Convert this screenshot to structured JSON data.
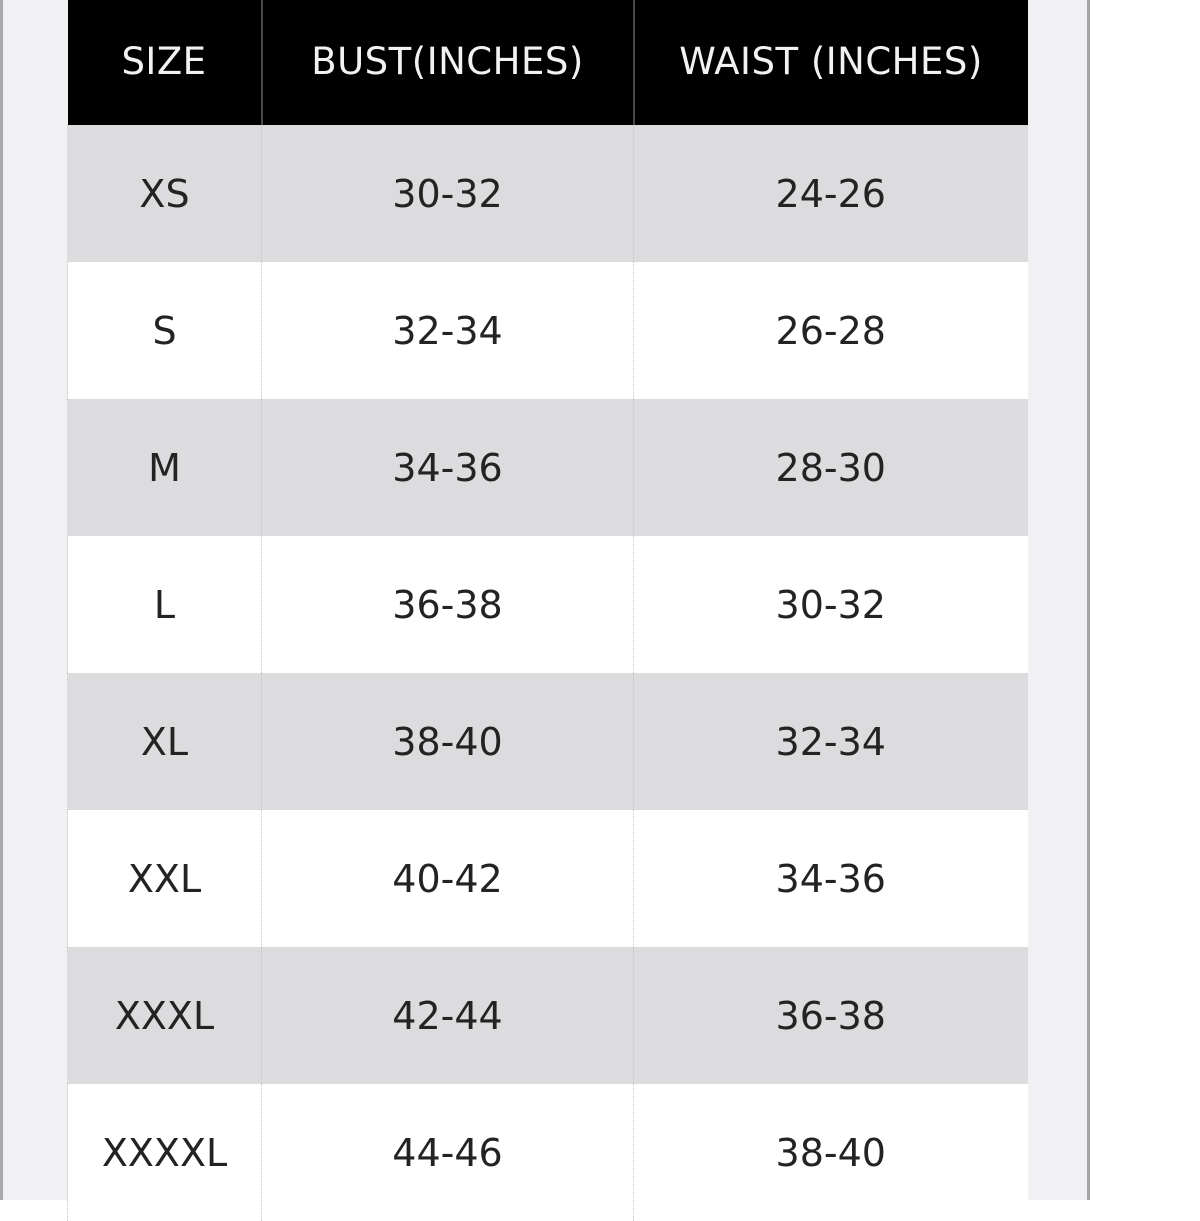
{
  "table": {
    "headers": [
      "SIZE",
      "BUST(INCHES)",
      "WAIST (INCHES)"
    ],
    "rows": [
      [
        "XS",
        "30-32",
        "24-26"
      ],
      [
        "S",
        "32-34",
        "26-28"
      ],
      [
        "M",
        "34-36",
        "28-30"
      ],
      [
        "L",
        "36-38",
        "30-32"
      ],
      [
        "XL",
        "38-40",
        "32-34"
      ],
      [
        "XXL",
        "40-42",
        "34-36"
      ],
      [
        "XXXL",
        "42-44",
        "36-38"
      ],
      [
        "XXXXL",
        "44-46",
        "38-40"
      ]
    ]
  },
  "colors": {
    "header_bg": "#000000",
    "stripe": "#dcdbdd",
    "panel": "#f1f0f3"
  }
}
